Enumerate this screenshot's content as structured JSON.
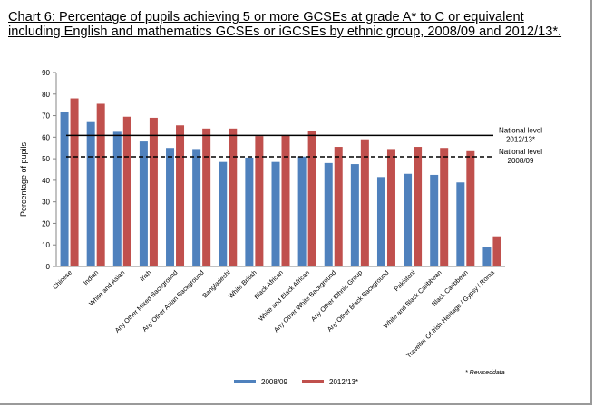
{
  "chart_data": {
    "type": "bar",
    "title": "Chart 6: Percentage of pupils achieving 5 or more GCSEs at grade A* to C or equivalent including English and mathematics GCSEs or iGCSEs by ethnic group, 2008/09 and 2012/13*.",
    "ylabel": "Percentage of pupils",
    "xlabel": "",
    "ylim": [
      0,
      90
    ],
    "yticks": [
      0,
      10,
      20,
      30,
      40,
      50,
      60,
      70,
      80,
      90
    ],
    "grid": false,
    "categories": [
      "Chinese",
      "Indian",
      "White and Asian",
      "Irish",
      "Any Other Mixed Background",
      "Any Other Asian Background",
      "Bangladeshi",
      "White British",
      "Black African",
      "White and Black African",
      "Any Other White Background",
      "Any Other Ethnic Group",
      "Any Other Black Background",
      "Pakistani",
      "White and Black Caribbean",
      "Black Caribbean",
      "Traveller Of Irish Heritage / Gypsy / Roma"
    ],
    "series": [
      {
        "name": "2008/09",
        "color": "#4f81bd",
        "values": [
          71.5,
          67,
          62.5,
          58,
          55,
          54.5,
          48.5,
          50.5,
          48.5,
          51,
          48,
          47.5,
          41.5,
          43,
          42.5,
          39,
          9
        ]
      },
      {
        "name": "2012/13*",
        "color": "#c0504d",
        "values": [
          78,
          75.5,
          69.5,
          69,
          65.5,
          64,
          64,
          60.5,
          61,
          63,
          55.5,
          59,
          54.5,
          55.5,
          55,
          53.5,
          14
        ]
      }
    ],
    "reference_lines": [
      {
        "label_line1": "National level",
        "label_line2": "2012/13*",
        "value": 60.8,
        "style": "solid"
      },
      {
        "label_line1": "National level",
        "label_line2": "2008/09",
        "value": 50.9,
        "style": "dashed"
      }
    ],
    "legend_position": "bottom-center",
    "footnote": "* Reviseddata"
  }
}
